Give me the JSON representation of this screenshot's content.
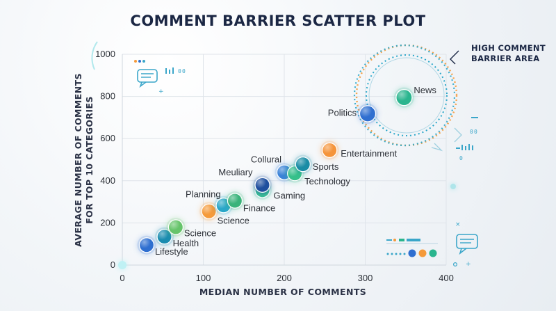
{
  "chart_data": {
    "type": "scatter",
    "title": "COMMENT BARRIER SCATTER PLOT",
    "xlabel": "MEDIAN NUMBER OF COMMENTS",
    "ylabel_lines": [
      "AVERAGE NUMBER OF COMMENTS",
      "FOR TOP 10 CATEGORIES"
    ],
    "xlim": [
      0,
      400
    ],
    "ylim": [
      0,
      1000
    ],
    "x_ticks": [
      "0",
      "100",
      "200",
      "300",
      "400"
    ],
    "y_ticks": [
      "0",
      "200",
      "400",
      "600",
      "800",
      "1000"
    ],
    "grid": true,
    "points": [
      {
        "label": "Lifestyle",
        "x": 30,
        "y": 95,
        "color": "#2f6fd0"
      },
      {
        "label": "Health",
        "x": 52,
        "y": 135,
        "color": "#1a8cb0"
      },
      {
        "label": "Science",
        "x": 66,
        "y": 180,
        "color": "#66c46a"
      },
      {
        "label": "Science",
        "x": 107,
        "y": 255,
        "color": "#f59a3a"
      },
      {
        "label": "Planning",
        "x": 125,
        "y": 283,
        "color": "#2aa7c9"
      },
      {
        "label": "Finance",
        "x": 139,
        "y": 305,
        "color": "#3ab37a"
      },
      {
        "label": "Gaming",
        "x": 173,
        "y": 355,
        "color": "#3abf95"
      },
      {
        "label": "Meuliary",
        "x": 173,
        "y": 380,
        "color": "#1f4f9e"
      },
      {
        "label": "Collural",
        "x": 200,
        "y": 440,
        "color": "#3a82d8"
      },
      {
        "label": "Technology",
        "x": 213,
        "y": 435,
        "color": "#36c08a"
      },
      {
        "label": "Sports",
        "x": 223,
        "y": 478,
        "color": "#1a8ca5"
      },
      {
        "label": "Entertainment",
        "x": 256,
        "y": 545,
        "color": "#f5943a"
      },
      {
        "label": "Politics",
        "x": 303,
        "y": 718,
        "color": "#2f6fd0"
      },
      {
        "label": "News",
        "x": 348,
        "y": 795,
        "color": "#2ab58e"
      }
    ],
    "annotation": {
      "lines": [
        "HIGH COMMENT",
        "BARRIER AREA"
      ]
    }
  }
}
